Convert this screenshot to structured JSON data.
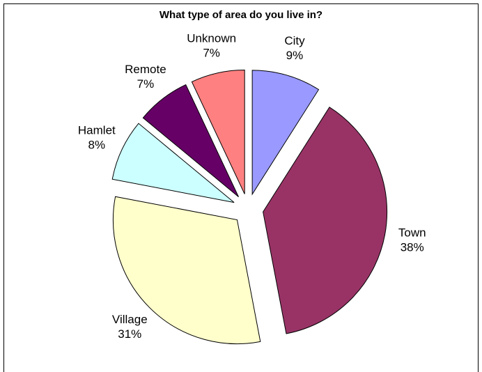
{
  "chart_data": {
    "type": "pie",
    "title": "What type of area do you live in?",
    "categories": [
      "City",
      "Town",
      "Village",
      "Hamlet",
      "Remote",
      "Unknown"
    ],
    "values": [
      9,
      38,
      31,
      8,
      7,
      7
    ],
    "value_labels": [
      "9%",
      "38%",
      "31%",
      "8%",
      "7%",
      "7%"
    ],
    "colors": [
      "#9999ff",
      "#993366",
      "#ffffcc",
      "#ccffff",
      "#660066",
      "#ff8080"
    ],
    "exploded": true
  }
}
